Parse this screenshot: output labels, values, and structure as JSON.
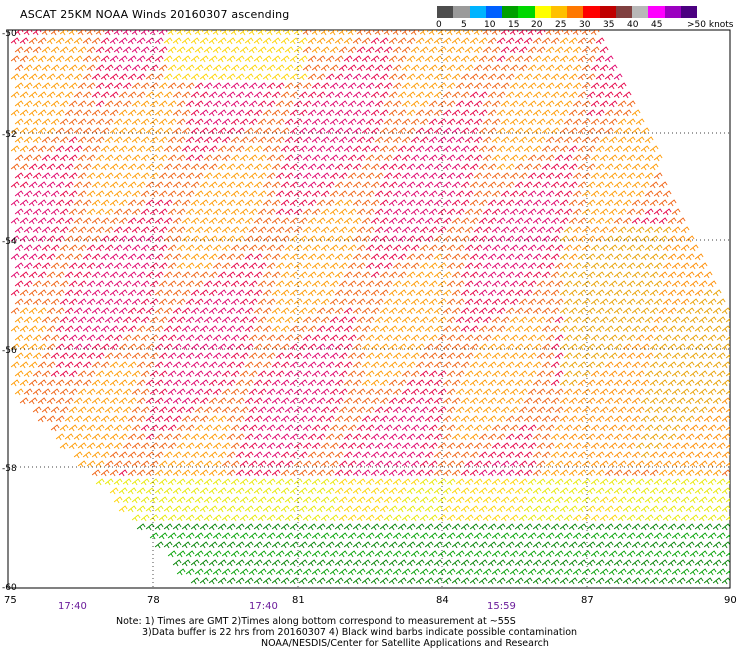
{
  "title": "ASCAT 25KM NOAA Winds 20160307 ascending",
  "colorbar": {
    "colors": [
      "#4d4d4d",
      "#9a9a9a",
      "#00b4ff",
      "#0060ff",
      "#00a000",
      "#00d800",
      "#ffff00",
      "#ffc000",
      "#ff7800",
      "#ff0000",
      "#c00000",
      "#804040",
      "#b8b8b8",
      "#ff00ff",
      "#9b00c0",
      "#4b0080"
    ],
    "labels": [
      "0",
      "5",
      "10",
      "15",
      "20",
      "25",
      "30",
      "35",
      "40",
      "45",
      ">50 knots"
    ]
  },
  "axes": {
    "lat_labels": [
      "-50",
      "-52",
      "-54",
      "-56",
      "-58",
      "-60"
    ],
    "lon_labels": [
      "75",
      "78",
      "81",
      "84",
      "87",
      "90"
    ],
    "time_labels": [
      "17:40",
      "17:40",
      "15:59"
    ]
  },
  "notes": {
    "line1": "Note: 1) Times are GMT 2)Times along bottom correspond to measurement at ~55S",
    "line2": "3)Data buffer is 22 hrs from 20160307 4) Black wind barbs indicate possible contamination",
    "line3": "NOAA/NESDIS/Center for Satellite Applications and Research"
  }
}
